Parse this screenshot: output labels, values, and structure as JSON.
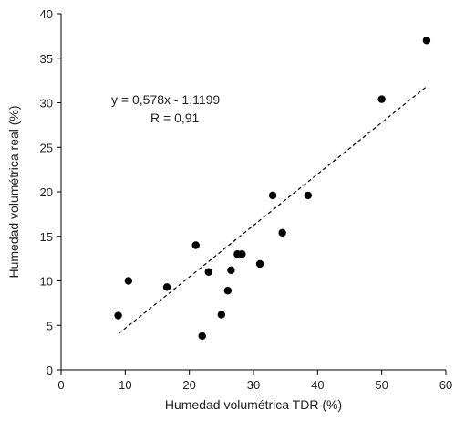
{
  "chart_data": {
    "type": "scatter",
    "title": "",
    "xlabel": "Humedad volumétrica TDR (%)",
    "ylabel": "Humedad volumétrica real (%)",
    "xlim": [
      0,
      60
    ],
    "ylim": [
      0,
      40
    ],
    "x_ticks": [
      0,
      10,
      20,
      30,
      40,
      50,
      60
    ],
    "y_ticks": [
      0,
      5,
      10,
      15,
      20,
      25,
      30,
      35,
      40
    ],
    "grid": false,
    "legend": "none",
    "point_color": "#000000",
    "series": [
      {
        "points": [
          [
            8.9,
            6.1
          ],
          [
            10.5,
            10.0
          ],
          [
            16.5,
            9.3
          ],
          [
            21.0,
            14.0
          ],
          [
            22.0,
            3.8
          ],
          [
            23.0,
            11.0
          ],
          [
            25.0,
            6.2
          ],
          [
            26.0,
            8.9
          ],
          [
            26.5,
            11.2
          ],
          [
            27.5,
            13.0
          ],
          [
            28.2,
            13.0
          ],
          [
            31.0,
            11.9
          ],
          [
            33.0,
            19.6
          ],
          [
            34.5,
            15.4
          ],
          [
            38.5,
            19.6
          ],
          [
            50.0,
            30.4
          ],
          [
            57.0,
            37.0
          ]
        ]
      }
    ],
    "trendline": {
      "slope": 0.578,
      "intercept": -1.1199,
      "x_range": [
        9,
        57
      ],
      "style": "dashed"
    },
    "annotations": {
      "equation": "y = 0,578x - 1,1199",
      "r_value": "R = 0,91"
    }
  }
}
